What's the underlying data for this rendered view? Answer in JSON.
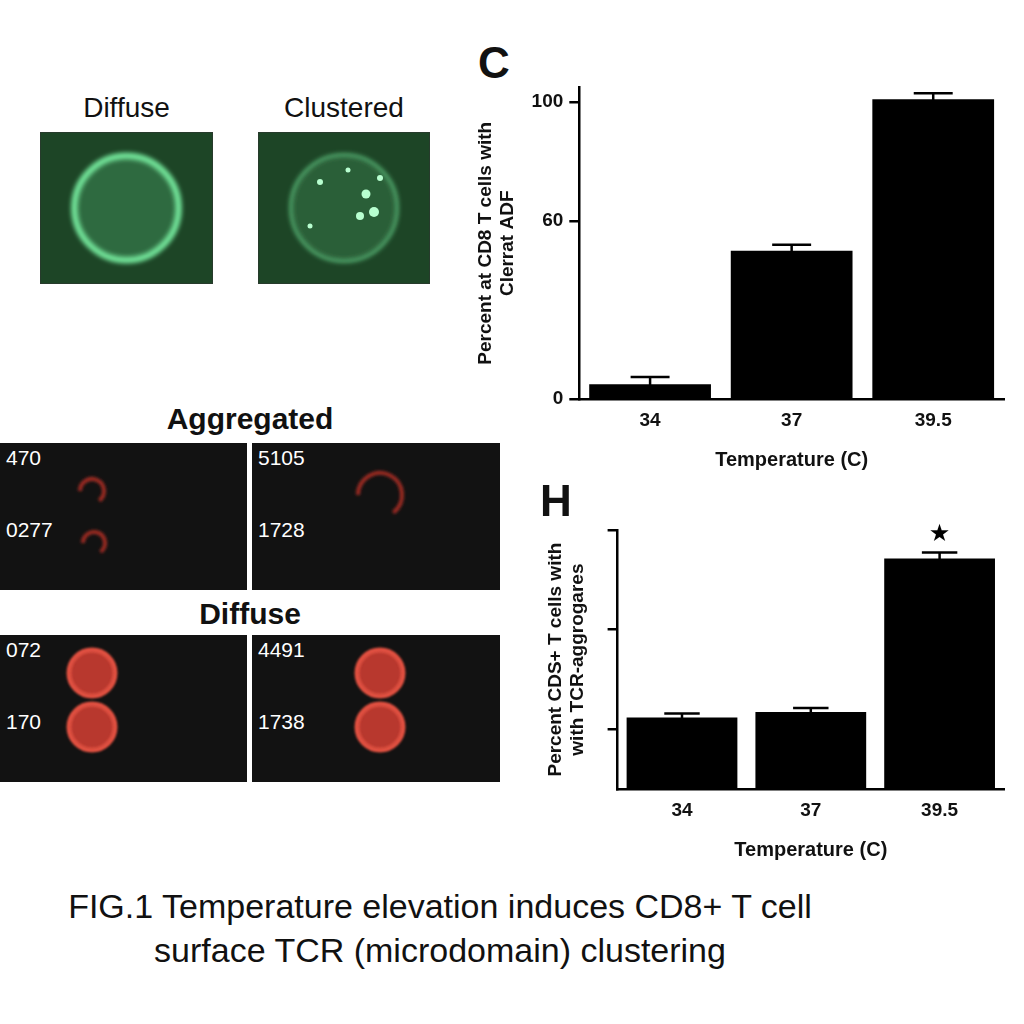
{
  "images": {
    "top": [
      {
        "label": "Diffuse"
      },
      {
        "label": "Clustered"
      }
    ],
    "rows": [
      {
        "title": "Aggregated",
        "panels": [
          [
            "470",
            "0277"
          ],
          [
            "5105",
            "1728"
          ]
        ]
      },
      {
        "title": "Diffuse",
        "panels": [
          [
            "072",
            "170"
          ],
          [
            "4491",
            "1738"
          ]
        ]
      }
    ]
  },
  "chart_data": [
    {
      "type": "bar",
      "panel": "C",
      "x_label": "Temperature (C)",
      "y_label": [
        "Percent at CD8 T cells with",
        "Clerrat ADF"
      ],
      "categories": [
        "34",
        "37",
        "39.5"
      ],
      "values": [
        5,
        50,
        101
      ],
      "errors": [
        2.5,
        2,
        2
      ],
      "color": "#000000",
      "ylim": [
        0,
        105
      ],
      "yticks": [
        0,
        60,
        100
      ],
      "grid": false
    },
    {
      "type": "bar",
      "panel": "H",
      "x_label": "Temperature (C)",
      "y_label": [
        "Percent CDS+ T cells with",
        "with TCR-aggrogares"
      ],
      "categories": [
        "34",
        "37",
        "39.5"
      ],
      "values": [
        22.4,
        23.5,
        54.3
      ],
      "errors": [
        0.8,
        0.8,
        1.2
      ],
      "annotations": [
        {
          "category": "39.5",
          "text": "★"
        }
      ],
      "color": "#000000",
      "ylim": [
        8,
        60
      ],
      "yticks": [
        20,
        40,
        60
      ],
      "grid": false,
      "tick_labels": "x"
    }
  ],
  "caption": "FIG.1 Temperature elevation induces CD8+ T cell surface TCR (microdomain) clustering"
}
